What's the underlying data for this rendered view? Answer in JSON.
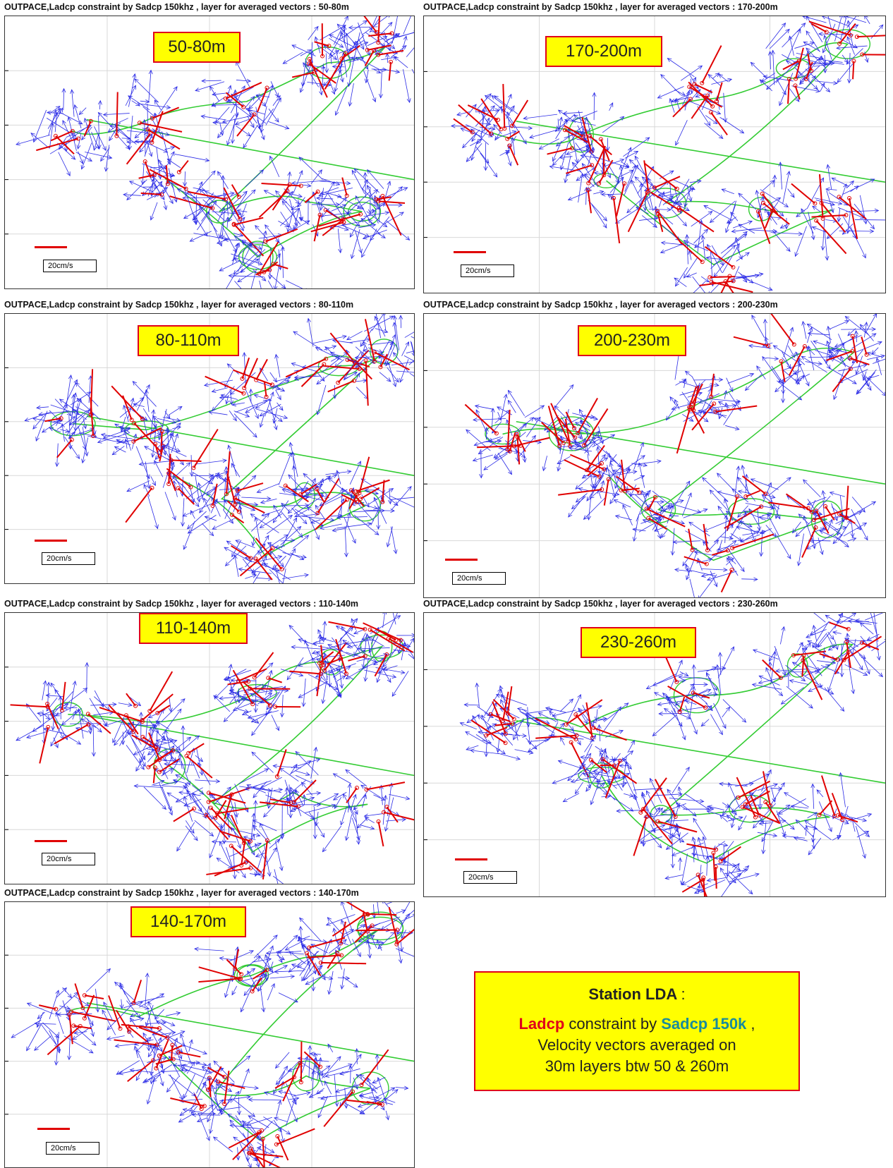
{
  "panels": [
    {
      "title": "OUTPACE,Ladcp constraint by Sadcp 150khz , layer for averaged vectors : 50-80m",
      "depth": "50-80m",
      "scale_label": "20cm/s"
    },
    {
      "title": "OUTPACE,Ladcp constraint by Sadcp 150khz , layer for averaged vectors : 170-200m",
      "depth": "170-200m",
      "scale_label": "20cm/s"
    },
    {
      "title": "OUTPACE,Ladcp constraint by Sadcp 150khz , layer for averaged vectors : 80-110m",
      "depth": "80-110m",
      "scale_label": "20cm/s"
    },
    {
      "title": "OUTPACE,Ladcp constraint by Sadcp 150khz , layer for averaged vectors : 200-230m",
      "depth": "200-230m",
      "scale_label": "20cm/s"
    },
    {
      "title": "OUTPACE,Ladcp constraint by Sadcp 150khz , layer for averaged vectors : 110-140m",
      "depth": "110-140m",
      "scale_label": "20cm/s"
    },
    {
      "title": "OUTPACE,Ladcp constraint by Sadcp 150khz , layer for averaged vectors : 230-260m",
      "depth": "230-260m",
      "scale_label": "20cm/s"
    },
    {
      "title": "OUTPACE,Ladcp constraint by Sadcp 150khz , layer for averaged vectors : 140-170m",
      "depth": "140-170m",
      "scale_label": "20cm/s"
    }
  ],
  "legend": {
    "title": "Station LDA",
    "title_suffix": ":",
    "line1_red": "Ladcp",
    "line1_mid": " constraint by ",
    "line1_teal": "Sadcp 150k",
    "line1_end": " ,",
    "line2": "Velocity  vectors averaged  on",
    "line3": "30m layers btw  50 & 260m"
  },
  "colors": {
    "ship_track": "#33cc33",
    "sadcp_vectors": "#2a2ae6",
    "ladcp_vectors": "#e00000",
    "label_bg": "#ffff00",
    "label_border": "#e0001a"
  }
}
